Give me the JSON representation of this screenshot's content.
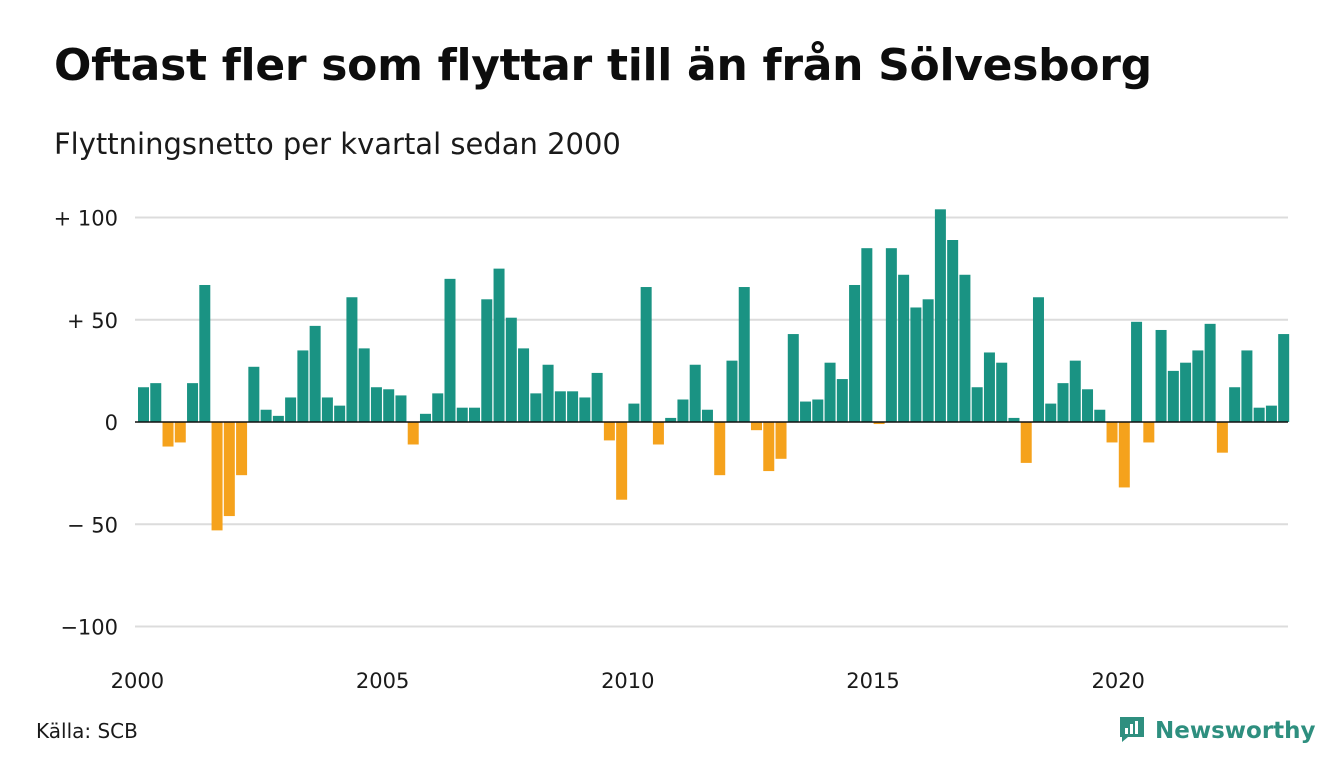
{
  "title": "Oftast fler som flyttar till än från Sölvesborg",
  "subtitle": "Flyttningsnetto per kvartal sedan 2000",
  "source": "Källa: SCB",
  "brand": {
    "name": "Newsworthy",
    "icon": "newsworthy-logo-icon",
    "color": "#2e8f7f"
  },
  "colors": {
    "positive": "#1a9383",
    "negative": "#f5a21c",
    "grid": "#dcdcdc",
    "zero_line": "#111111"
  },
  "chart_data": {
    "type": "bar",
    "title": "Oftast fler som flyttar till än från Sölvesborg",
    "subtitle": "Flyttningsnetto per kvartal sedan 2000",
    "xlabel": "",
    "ylabel": "",
    "ylim": [
      -100,
      100
    ],
    "y_ticks": [
      {
        "value": 100,
        "label": "+ 100"
      },
      {
        "value": 50,
        "label": "+  50"
      },
      {
        "value": 0,
        "label": "0"
      },
      {
        "value": -50,
        "label": "− 50"
      },
      {
        "value": -100,
        "label": "−100"
      }
    ],
    "x_ticks": [
      {
        "year": 2000,
        "label": "2000"
      },
      {
        "year": 2005,
        "label": "2005"
      },
      {
        "year": 2010,
        "label": "2010"
      },
      {
        "year": 2015,
        "label": "2015"
      },
      {
        "year": 2020,
        "label": "2020"
      }
    ],
    "grid": true,
    "legend": "none",
    "start_period": "2000 Q1",
    "frequency": "quarterly",
    "values": [
      17,
      19,
      -12,
      -10,
      19,
      67,
      -53,
      -46,
      -26,
      27,
      6,
      3,
      12,
      35,
      47,
      12,
      8,
      61,
      36,
      17,
      16,
      13,
      -11,
      4,
      14,
      70,
      7,
      7,
      60,
      75,
      51,
      36,
      14,
      28,
      15,
      15,
      12,
      24,
      -9,
      -38,
      9,
      66,
      -11,
      2,
      11,
      28,
      6,
      -26,
      30,
      66,
      -4,
      -24,
      -18,
      43,
      10,
      11,
      29,
      21,
      67,
      85,
      -1,
      85,
      72,
      56,
      60,
      104,
      89,
      72,
      17,
      34,
      29,
      2,
      -20,
      61,
      9,
      19,
      30,
      16,
      6,
      -10,
      -32,
      49,
      -10,
      45,
      25,
      29,
      35,
      48,
      -15,
      17,
      35,
      7,
      8,
      43
    ]
  }
}
